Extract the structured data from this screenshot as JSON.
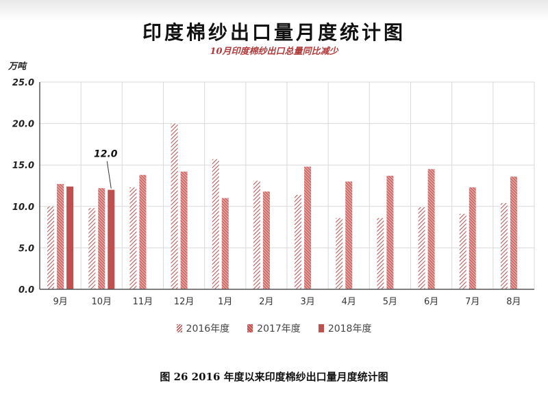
{
  "chart_data": {
    "type": "bar",
    "title": "印度棉纱出口量月度统计图",
    "subtitle": "10月印度棉纱出口总量同比减少",
    "ylabel": "万吨",
    "ylim": [
      0,
      25
    ],
    "yticks": [
      "0.0",
      "5.0",
      "10.0",
      "15.0",
      "20.0",
      "25.0"
    ],
    "grid": true,
    "legend_position": "bottom",
    "categories": [
      "9月",
      "10月",
      "11月",
      "12月",
      "1月",
      "2月",
      "3月",
      "4月",
      "5月",
      "6月",
      "7月",
      "8月"
    ],
    "series": [
      {
        "name": "2016年度",
        "color": "#b55a5a",
        "pattern": "diagonal-hatch",
        "values": [
          10.0,
          9.8,
          12.3,
          20.0,
          15.7,
          13.1,
          11.4,
          8.6,
          8.6,
          9.9,
          9.1,
          10.4
        ]
      },
      {
        "name": "2017年度",
        "color": "#c0504d",
        "pattern": "dense-hatch",
        "values": [
          12.7,
          12.2,
          13.8,
          14.2,
          11.0,
          11.8,
          14.8,
          13.0,
          13.7,
          14.5,
          12.3,
          13.6
        ]
      },
      {
        "name": "2018年度",
        "color": "#c0504d",
        "pattern": "solid",
        "values": [
          12.4,
          12.0,
          null,
          null,
          null,
          null,
          null,
          null,
          null,
          null,
          null,
          null
        ]
      }
    ],
    "annotations": [
      {
        "category": "10月",
        "series": "2018年度",
        "text": "12.0"
      }
    ]
  },
  "caption": "图 26    2016 年度以来印度棉纱出口量月度统计图"
}
